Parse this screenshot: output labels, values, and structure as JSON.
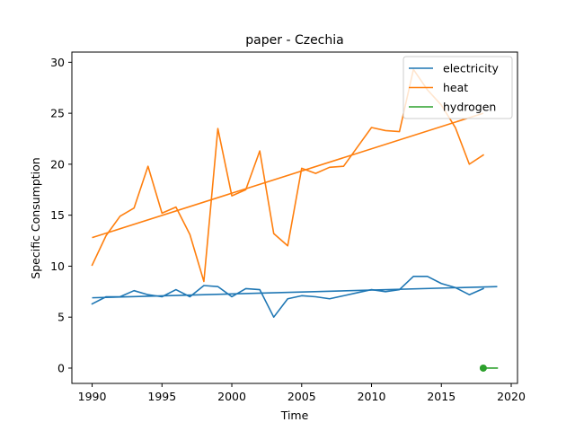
{
  "chart_data": {
    "type": "line",
    "title": "paper - Czechia",
    "xlabel": "Time",
    "ylabel": "Specific Consumption",
    "xlim": [
      1988.55,
      2020.45
    ],
    "ylim": [
      -1.5,
      31.0
    ],
    "xticks": [
      1990,
      1995,
      2000,
      2005,
      2010,
      2015,
      2020
    ],
    "yticks": [
      0,
      5,
      10,
      15,
      20,
      25,
      30
    ],
    "grid": false,
    "legend_position": "top-right",
    "series": [
      {
        "name": "electricity",
        "color": "#1f77b4",
        "x": [
          1990,
          1991,
          1992,
          1993,
          1994,
          1995,
          1996,
          1997,
          1998,
          1999,
          2000,
          2001,
          2002,
          2003,
          2004,
          2005,
          2006,
          2007,
          2008,
          2009,
          2010,
          2011,
          2012,
          2013,
          2014,
          2015,
          2016,
          2017,
          2018
        ],
        "values": [
          6.3,
          7.0,
          7.0,
          7.6,
          7.2,
          7.0,
          7.7,
          7.0,
          8.1,
          8.0,
          7.0,
          7.8,
          7.7,
          5.0,
          6.8,
          7.1,
          7.0,
          6.8,
          7.1,
          7.4,
          7.7,
          7.5,
          7.7,
          9.0,
          9.0,
          8.3,
          7.9,
          7.2,
          7.8
        ],
        "trend": {
          "x": [
            1990,
            2019
          ],
          "values": [
            6.9,
            8.0
          ]
        }
      },
      {
        "name": "heat",
        "color": "#ff7f0e",
        "x": [
          1990,
          1991,
          1992,
          1993,
          1994,
          1995,
          1996,
          1997,
          1998,
          1999,
          2000,
          2001,
          2002,
          2003,
          2004,
          2005,
          2006,
          2007,
          2008,
          2009,
          2010,
          2011,
          2012,
          2013,
          2014,
          2015,
          2016,
          2017,
          2018
        ],
        "values": [
          10.1,
          13.0,
          14.9,
          15.7,
          19.8,
          15.2,
          15.8,
          13.1,
          8.5,
          23.5,
          16.9,
          17.5,
          21.3,
          13.2,
          12.0,
          19.6,
          19.1,
          19.7,
          19.8,
          21.7,
          23.6,
          23.3,
          23.2,
          29.3,
          27.3,
          25.8,
          23.6,
          20.0,
          20.9
        ],
        "trend": {
          "x": [
            1990,
            2018
          ],
          "values": [
            12.8,
            25.0
          ]
        }
      },
      {
        "name": "hydrogen",
        "color": "#2ca02c",
        "x": [
          2018,
          2019
        ],
        "values": [
          0.0,
          0.0
        ],
        "marker_x": [
          2018
        ],
        "marker_values": [
          0.0
        ]
      }
    ]
  }
}
